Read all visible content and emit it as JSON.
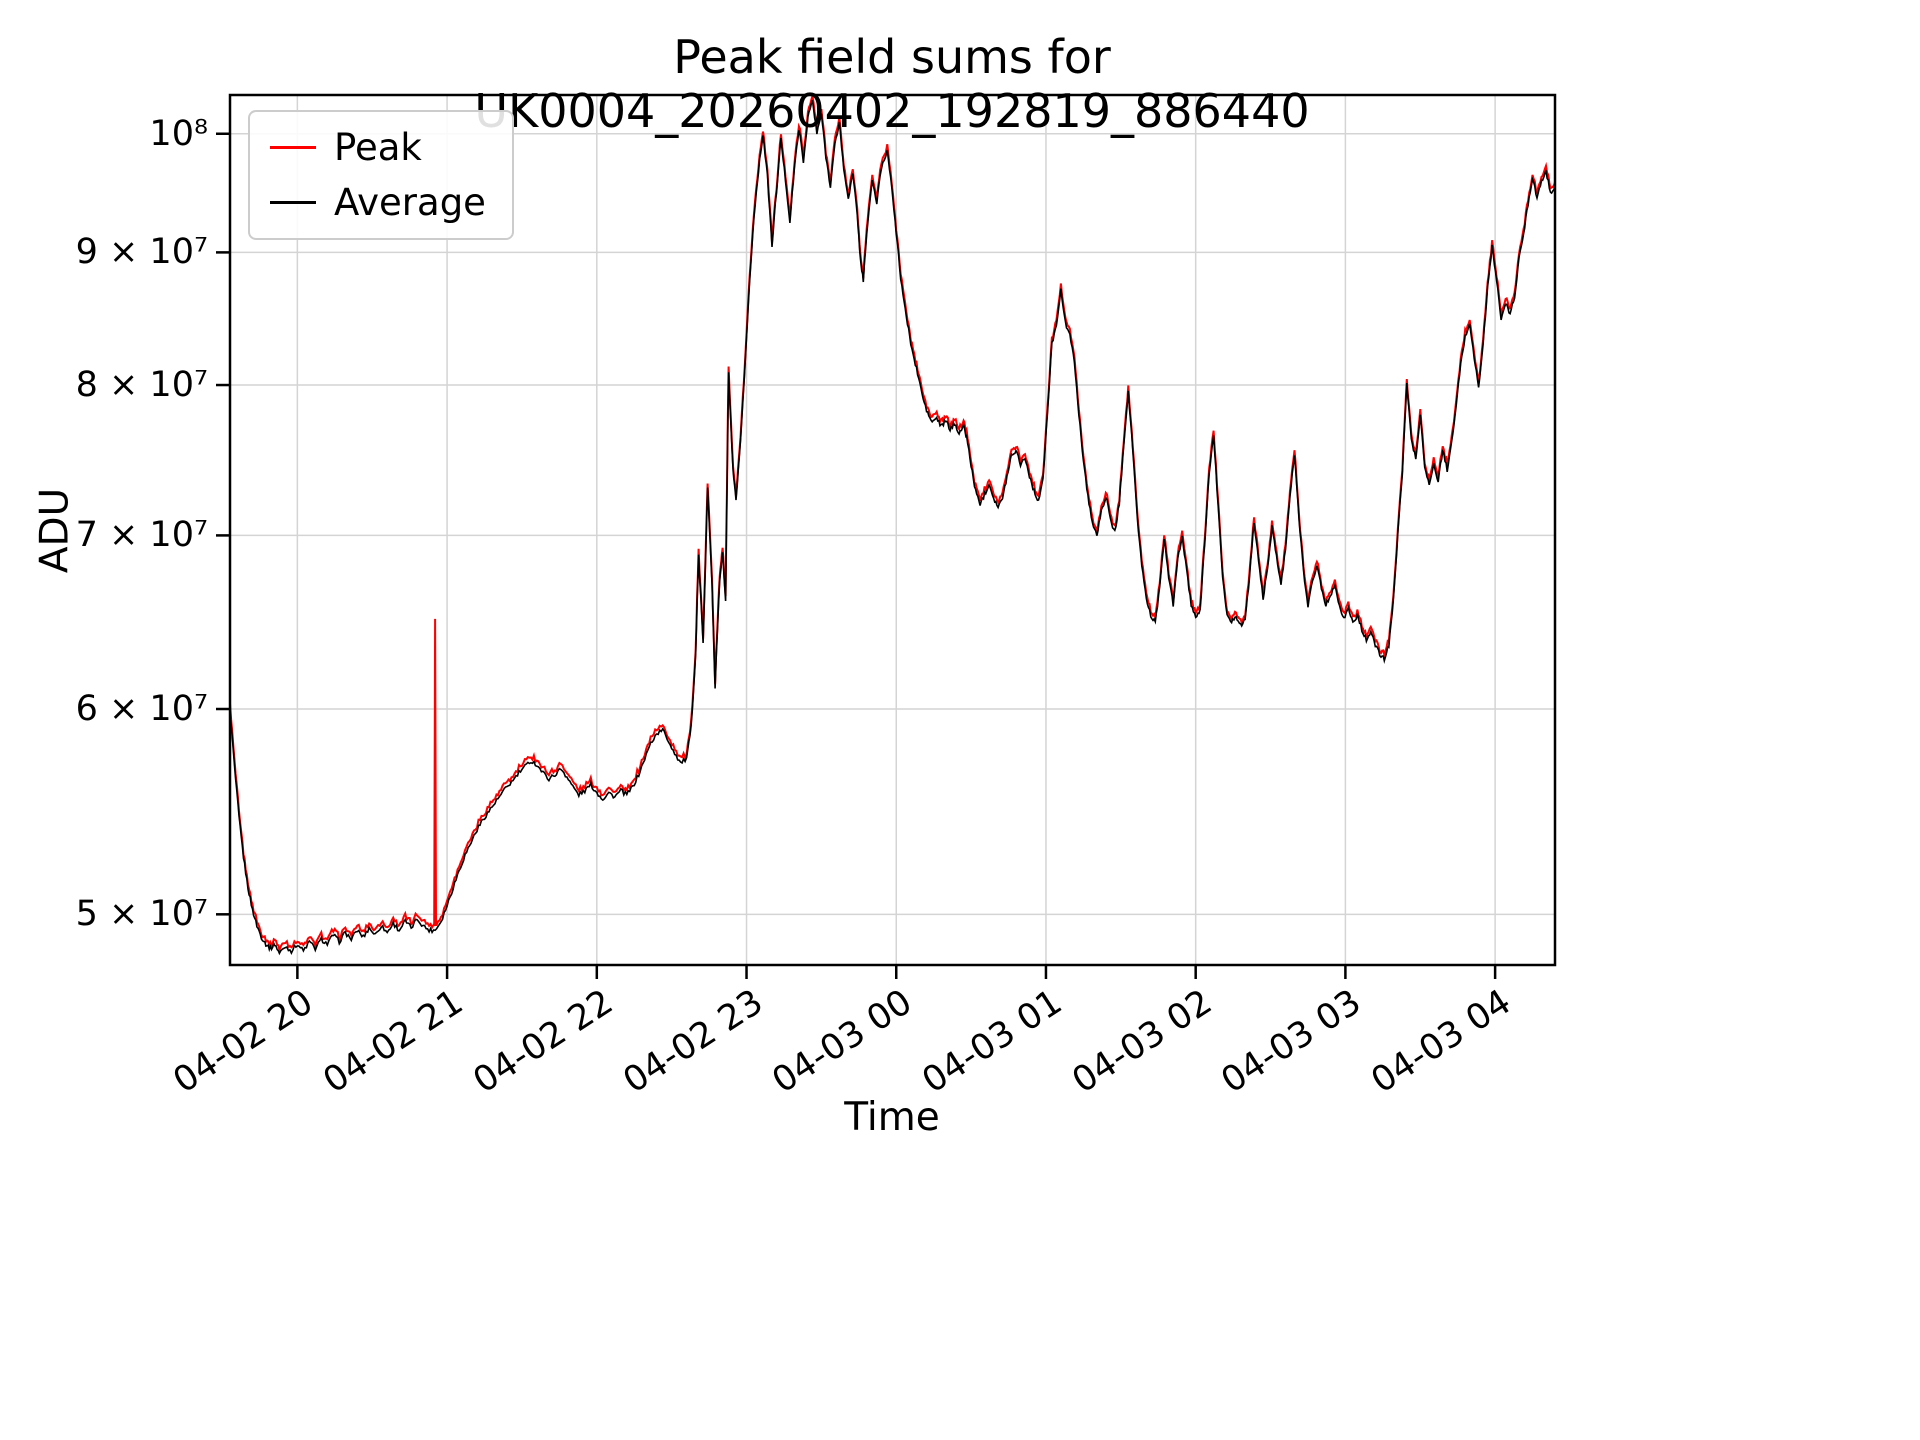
{
  "title": "Peak field sums for UK0004_20260402_192819_886440",
  "xlabel": "Time",
  "ylabel": "ADU",
  "legend": {
    "position": "upper-left",
    "entries": [
      {
        "label": "Peak",
        "color": "#ff0000"
      },
      {
        "label": "Average",
        "color": "#000000"
      }
    ]
  },
  "axes": {
    "x_tick_labels": [
      "04-02 20",
      "04-02 21",
      "04-02 22",
      "04-02 23",
      "04-03 00",
      "04-03 01",
      "04-03 02",
      "04-03 03",
      "04-03 04"
    ],
    "x_tick_hours": [
      20,
      21,
      22,
      23,
      24,
      25,
      26,
      27,
      28
    ],
    "x_range_hours": [
      19.55,
      28.4
    ],
    "y_scale": "log",
    "y_tick_values_e7": [
      5,
      6,
      7,
      8,
      9,
      10
    ],
    "y_tick_labels": [
      "5 × 10⁷",
      "6 × 10⁷",
      "7 × 10⁷",
      "8 × 10⁷",
      "9 × 10⁷",
      "10⁸"
    ],
    "y_range_e7": [
      4.78,
      10.35
    ],
    "grid": true
  },
  "chart_data": {
    "type": "line",
    "units": "ADU, values in 1e7",
    "x_units": "hours from 04-02 00:00 (24+ = 04-03)",
    "x_hours": [
      19.55,
      19.58,
      19.61,
      19.64,
      19.67,
      19.7,
      19.73,
      19.76,
      19.79,
      19.82,
      19.85,
      19.88,
      19.92,
      19.96,
      20.0,
      20.04,
      20.08,
      20.12,
      20.16,
      20.2,
      20.24,
      20.28,
      20.32,
      20.36,
      20.4,
      20.44,
      20.48,
      20.52,
      20.56,
      20.6,
      20.64,
      20.68,
      20.72,
      20.76,
      20.8,
      20.84,
      20.88,
      20.92,
      20.96,
      21.0,
      21.04,
      21.08,
      21.12,
      21.16,
      21.2,
      21.24,
      21.28,
      21.32,
      21.36,
      21.4,
      21.44,
      21.48,
      21.52,
      21.56,
      21.6,
      21.64,
      21.68,
      21.72,
      21.76,
      21.8,
      21.84,
      21.88,
      21.92,
      21.96,
      22.0,
      22.04,
      22.08,
      22.12,
      22.16,
      22.2,
      22.24,
      22.28,
      22.32,
      22.36,
      22.4,
      22.44,
      22.48,
      22.52,
      22.56,
      22.6,
      22.63,
      22.66,
      22.68,
      22.71,
      22.74,
      22.77,
      22.79,
      22.82,
      22.84,
      22.86,
      22.88,
      22.91,
      22.93,
      22.96,
      22.99,
      23.02,
      23.05,
      23.08,
      23.11,
      23.14,
      23.17,
      23.2,
      23.23,
      23.26,
      23.29,
      23.32,
      23.35,
      23.38,
      23.41,
      23.44,
      23.47,
      23.5,
      23.53,
      23.56,
      23.59,
      23.62,
      23.65,
      23.68,
      23.71,
      23.74,
      23.76,
      23.78,
      23.81,
      23.84,
      23.87,
      23.9,
      23.94,
      23.97,
      24.0,
      24.03,
      24.06,
      24.09,
      24.12,
      24.15,
      24.18,
      24.21,
      24.24,
      24.27,
      24.3,
      24.33,
      24.36,
      24.39,
      24.42,
      24.45,
      24.47,
      24.5,
      24.53,
      24.56,
      24.59,
      24.62,
      24.65,
      24.68,
      24.71,
      24.74,
      24.77,
      24.8,
      24.83,
      24.86,
      24.89,
      24.92,
      24.95,
      24.98,
      25.01,
      25.04,
      25.07,
      25.1,
      25.13,
      25.16,
      25.19,
      25.22,
      25.25,
      25.28,
      25.31,
      25.34,
      25.37,
      25.4,
      25.43,
      25.46,
      25.49,
      25.52,
      25.55,
      25.58,
      25.61,
      25.64,
      25.67,
      25.7,
      25.73,
      25.76,
      25.79,
      25.82,
      25.85,
      25.88,
      25.91,
      25.94,
      25.97,
      26.0,
      26.03,
      26.06,
      26.09,
      26.12,
      26.15,
      26.18,
      26.21,
      26.24,
      26.27,
      26.3,
      26.33,
      26.36,
      26.39,
      26.42,
      26.45,
      26.48,
      26.51,
      26.54,
      26.57,
      26.6,
      26.63,
      26.66,
      26.69,
      26.72,
      26.75,
      26.78,
      26.81,
      26.84,
      26.87,
      26.9,
      26.93,
      26.96,
      26.99,
      27.02,
      27.05,
      27.08,
      27.11,
      27.14,
      27.17,
      27.2,
      27.23,
      27.26,
      27.29,
      27.32,
      27.35,
      27.38,
      27.41,
      27.44,
      27.47,
      27.5,
      27.53,
      27.56,
      27.59,
      27.62,
      27.65,
      27.68,
      27.71,
      27.74,
      27.77,
      27.8,
      27.83,
      27.86,
      27.89,
      27.92,
      27.95,
      27.98,
      28.01,
      28.04,
      28.07,
      28.1,
      28.13,
      28.16,
      28.19,
      28.22,
      28.25,
      28.28,
      28.31,
      28.34,
      28.37,
      28.4
    ],
    "values_e7": [
      6.0,
      5.7,
      5.45,
      5.26,
      5.12,
      5.02,
      4.95,
      4.9,
      4.87,
      4.85,
      4.87,
      4.83,
      4.86,
      4.84,
      4.87,
      4.84,
      4.88,
      4.85,
      4.89,
      4.87,
      4.91,
      4.88,
      4.92,
      4.89,
      4.93,
      4.9,
      4.94,
      4.91,
      4.95,
      4.92,
      4.96,
      4.93,
      4.97,
      4.94,
      4.98,
      4.95,
      4.93,
      4.93,
      4.97,
      5.04,
      5.12,
      5.2,
      5.27,
      5.33,
      5.39,
      5.44,
      5.48,
      5.52,
      5.56,
      5.6,
      5.63,
      5.67,
      5.7,
      5.73,
      5.71,
      5.67,
      5.64,
      5.66,
      5.69,
      5.65,
      5.6,
      5.56,
      5.58,
      5.61,
      5.57,
      5.54,
      5.57,
      5.55,
      5.58,
      5.56,
      5.6,
      5.66,
      5.74,
      5.82,
      5.87,
      5.89,
      5.83,
      5.77,
      5.72,
      5.74,
      5.9,
      6.3,
      6.88,
      6.35,
      7.3,
      6.7,
      6.12,
      6.72,
      6.9,
      6.6,
      8.08,
      7.4,
      7.22,
      7.6,
      8.15,
      8.75,
      9.3,
      9.68,
      10.0,
      9.62,
      9.05,
      9.5,
      9.95,
      9.6,
      9.25,
      9.7,
      10.05,
      9.75,
      10.15,
      10.3,
      10.0,
      10.18,
      9.8,
      9.55,
      9.9,
      10.1,
      9.68,
      9.45,
      9.65,
      9.3,
      8.95,
      8.78,
      9.25,
      9.6,
      9.4,
      9.7,
      9.85,
      9.55,
      9.15,
      8.8,
      8.55,
      8.35,
      8.18,
      8.05,
      7.9,
      7.8,
      7.74,
      7.77,
      7.71,
      7.75,
      7.69,
      7.73,
      7.67,
      7.71,
      7.64,
      7.45,
      7.28,
      7.2,
      7.26,
      7.33,
      7.24,
      7.18,
      7.23,
      7.38,
      7.52,
      7.55,
      7.46,
      7.5,
      7.38,
      7.28,
      7.22,
      7.35,
      7.8,
      8.3,
      8.45,
      8.7,
      8.45,
      8.38,
      8.15,
      7.8,
      7.48,
      7.25,
      7.08,
      7.0,
      7.15,
      7.25,
      7.1,
      7.02,
      7.2,
      7.6,
      7.95,
      7.55,
      7.1,
      6.82,
      6.62,
      6.52,
      6.48,
      6.68,
      6.98,
      6.75,
      6.58,
      6.85,
      7.0,
      6.78,
      6.58,
      6.5,
      6.55,
      6.95,
      7.4,
      7.65,
      7.18,
      6.75,
      6.52,
      6.48,
      6.52,
      6.46,
      6.5,
      6.75,
      7.08,
      6.85,
      6.62,
      6.8,
      7.05,
      6.88,
      6.7,
      6.92,
      7.25,
      7.52,
      7.1,
      6.78,
      6.58,
      6.72,
      6.82,
      6.68,
      6.58,
      6.64,
      6.7,
      6.58,
      6.5,
      6.56,
      6.48,
      6.52,
      6.44,
      6.38,
      6.42,
      6.35,
      6.3,
      6.27,
      6.35,
      6.6,
      7.0,
      7.4,
      8.02,
      7.62,
      7.5,
      7.78,
      7.45,
      7.32,
      7.45,
      7.35,
      7.55,
      7.42,
      7.6,
      7.85,
      8.15,
      8.35,
      8.45,
      8.2,
      7.98,
      8.3,
      8.72,
      9.05,
      8.78,
      8.48,
      8.6,
      8.52,
      8.65,
      8.95,
      9.15,
      9.4,
      9.62,
      9.45,
      9.58,
      9.68,
      9.48,
      9.55
    ],
    "series": [
      {
        "name": "Peak",
        "color": "#ff0000",
        "scale_factor": 1.003,
        "fringe_noise": 0.005,
        "spike": {
          "x_hour": 20.92,
          "value_e7": 6.5
        }
      },
      {
        "name": "Average",
        "color": "#000000",
        "scale_factor": 1.0,
        "fringe_noise": 0
      }
    ]
  },
  "style": {
    "background": "#ffffff",
    "grid_color": "#d4d4d4",
    "spine_color": "#000000",
    "texture_noise": 0.004
  }
}
